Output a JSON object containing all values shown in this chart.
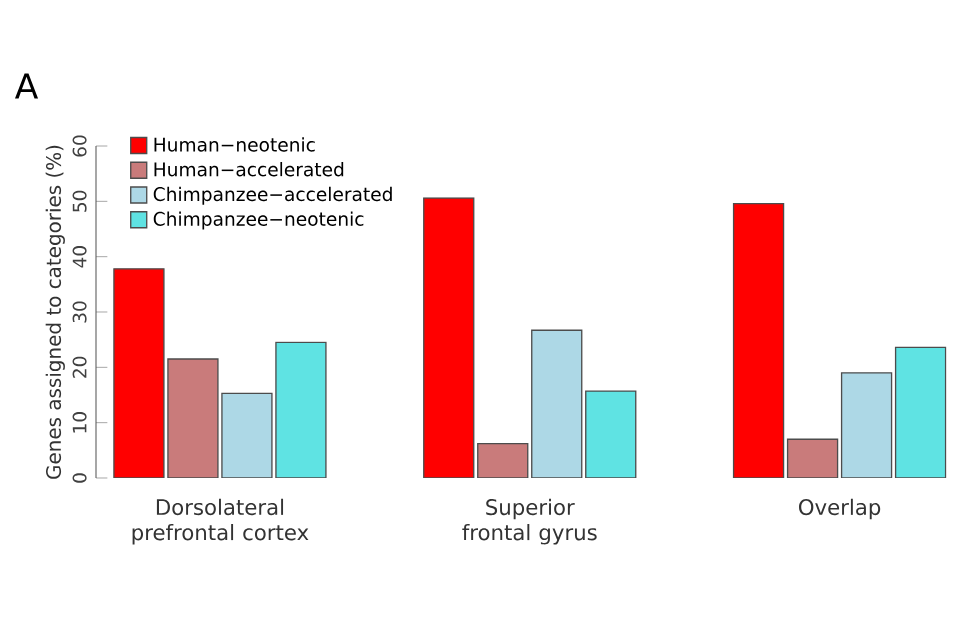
{
  "chart_data": {
    "type": "bar",
    "ylabel": "Genes assigned to categories (%)",
    "annotations": [
      "A"
    ],
    "categories": [
      "Dorsolateral prefrontal cortex",
      "Superior frontal gyrus",
      "Overlap"
    ],
    "series": [
      {
        "name": "Human−neotenic",
        "color": "#ff0000",
        "values": [
          37.8,
          50.6,
          49.6
        ]
      },
      {
        "name": "Human−accelerated",
        "color": "#c97b7b",
        "values": [
          21.5,
          6.2,
          7.0
        ]
      },
      {
        "name": "Chimpanzee−accelerated",
        "color": "#add8e6",
        "values": [
          15.3,
          26.7,
          19.0
        ]
      },
      {
        "name": "Chimpanzee−neotenic",
        "color": "#5fe3e3",
        "values": [
          24.5,
          15.7,
          23.6
        ]
      }
    ],
    "ylim": [
      0,
      60
    ],
    "yticks": [
      0,
      10,
      20,
      30,
      40,
      50,
      60
    ],
    "legend": "top left"
  }
}
